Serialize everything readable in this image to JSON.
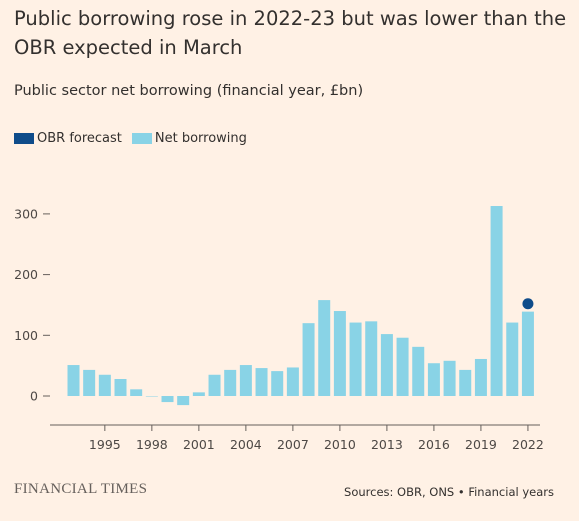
{
  "title": "Public borrowing rose in 2022-23 but was lower than the OBR expected in March",
  "subtitle": "Public sector net borrowing (financial year, £bn)",
  "legend": {
    "forecast_label": "OBR forecast",
    "actual_label": "Net borrowing"
  },
  "colors": {
    "background": "#fff1e5",
    "bar": "#89d3e6",
    "forecast": "#0f4c8a",
    "grid": "#ccc1b7",
    "axis": "#66605c"
  },
  "brand": "FINANCIAL TIMES",
  "source": "Sources: OBR, ONS • Financial years",
  "chart_data": {
    "type": "bar",
    "title": "Public borrowing rose in 2022-23 but was lower than the OBR expected in March",
    "subtitle": "Public sector net borrowing (financial year, £bn)",
    "xlabel": "",
    "ylabel": "",
    "ylim": [
      -60,
      320
    ],
    "yticks": [
      0,
      100,
      200,
      300
    ],
    "xticks": [
      1995,
      1998,
      2001,
      2004,
      2007,
      2010,
      2013,
      2016,
      2019,
      2022
    ],
    "legend_position": "top-left",
    "series": [
      {
        "name": "Net borrowing",
        "type": "bar",
        "x": [
          1993,
          1994,
          1995,
          1996,
          1997,
          1998,
          1999,
          2000,
          2001,
          2002,
          2003,
          2004,
          2005,
          2006,
          2007,
          2008,
          2009,
          2010,
          2011,
          2012,
          2013,
          2014,
          2015,
          2016,
          2017,
          2018,
          2019,
          2020,
          2021,
          2022
        ],
        "values": [
          51,
          43,
          35,
          28,
          11,
          0,
          -10,
          -15,
          6,
          35,
          43,
          51,
          46,
          41,
          47,
          120,
          158,
          140,
          121,
          123,
          102,
          96,
          81,
          54,
          58,
          43,
          61,
          313,
          121,
          139
        ]
      },
      {
        "name": "OBR forecast",
        "type": "point",
        "x": [
          2022
        ],
        "values": [
          152
        ]
      }
    ]
  }
}
